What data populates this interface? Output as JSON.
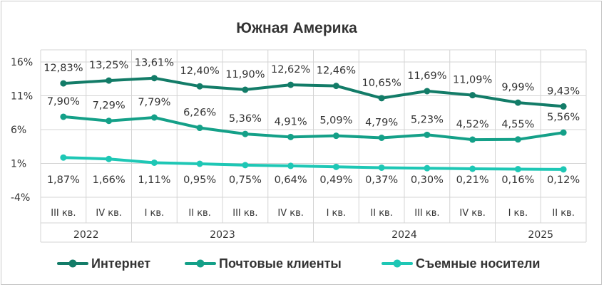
{
  "chart_data": {
    "type": "line",
    "title": "Южная Америка",
    "xlabel": "",
    "ylabel": "",
    "ylim": [
      -4,
      16
    ],
    "yticks": [
      "16%",
      "11%",
      "6%",
      "1%",
      "-4%"
    ],
    "grid": true,
    "legend_position": "bottom",
    "categories": [
      "III кв.",
      "IV кв.",
      "I кв.",
      "II кв.",
      "III кв.",
      "IV кв.",
      "I кв.",
      "II кв.",
      "III кв.",
      "IV кв.",
      "I кв.",
      "II кв."
    ],
    "year_groups": [
      {
        "label": "2022",
        "start": 0,
        "end": 1
      },
      {
        "label": "2023",
        "start": 2,
        "end": 5
      },
      {
        "label": "2024",
        "start": 6,
        "end": 9
      },
      {
        "label": "2025",
        "start": 10,
        "end": 11
      }
    ],
    "series": [
      {
        "name": "Интернет",
        "color": "#137c68",
        "values": [
          12.83,
          13.25,
          13.61,
          12.4,
          11.9,
          12.62,
          12.46,
          10.65,
          11.69,
          11.09,
          9.99,
          9.43
        ],
        "labels": [
          "12,83%",
          "13,25%",
          "13,61%",
          "12,40%",
          "11,90%",
          "12,62%",
          "12,46%",
          "10,65%",
          "11,69%",
          "11,09%",
          "9,99%",
          "9,43%"
        ],
        "label_pos": "above"
      },
      {
        "name": "Почтовые клиенты",
        "color": "#14a088",
        "values": [
          7.9,
          7.29,
          7.79,
          6.26,
          5.36,
          4.91,
          5.09,
          4.79,
          5.23,
          4.52,
          4.55,
          5.56
        ],
        "labels": [
          "7,90%",
          "7,29%",
          "7,79%",
          "6,26%",
          "5,36%",
          "4,91%",
          "5,09%",
          "4,79%",
          "5,23%",
          "4,52%",
          "4,55%",
          "5,56%"
        ],
        "label_pos": "above"
      },
      {
        "name": "Съемные носители",
        "color": "#1ec7b5",
        "values": [
          1.87,
          1.66,
          1.11,
          0.95,
          0.75,
          0.64,
          0.49,
          0.37,
          0.3,
          0.21,
          0.16,
          0.12
        ],
        "labels": [
          "1,87%",
          "1,66%",
          "1,11%",
          "0,95%",
          "0,75%",
          "0,64%",
          "0,49%",
          "0,37%",
          "0,30%",
          "0,21%",
          "0,16%",
          "0,12%"
        ],
        "label_pos": "below"
      }
    ]
  }
}
